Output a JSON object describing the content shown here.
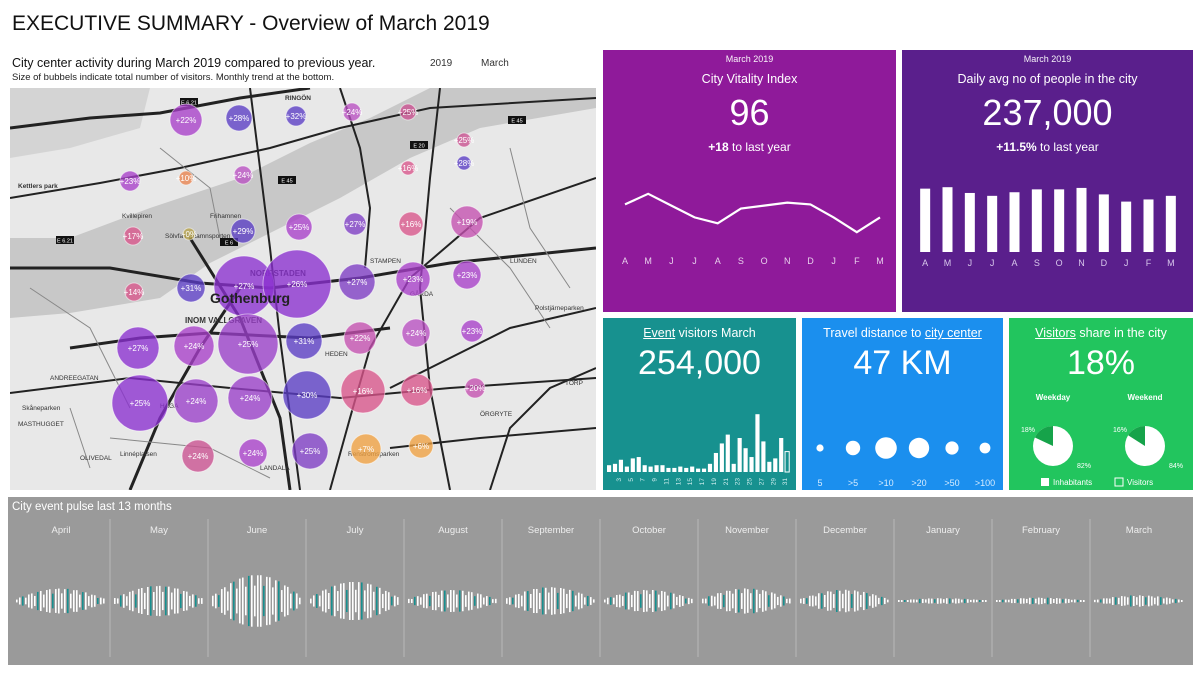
{
  "title": "EXECUTIVE SUMMARY - Overview of March 2019",
  "map": {
    "subtitle": "City center activity during March 2019 compared to previous year.",
    "note": "Size of bubbels indicate total number of visitors. Monthly trend at the bottom.",
    "filter_year": "2019",
    "filter_month": "March",
    "city_label": "Gothenburg",
    "place_labels": [
      "RINGÖN",
      "Kettlers park",
      "Frihamnen",
      "Sölvfa Frihamnsporten",
      "NORRSTADEN",
      "STAMPEN",
      "GÅRDA",
      "LUNDEN",
      "INOM VALLGRAVEN",
      "HEDEN",
      "Polstjärneparken",
      "MASTHUGGET",
      "HAGA",
      "OLIVEDAL",
      "LANDALA",
      "ÖRGRYTE",
      "TORP",
      "ANDREEGATAN",
      "Kvillepiren",
      "Skåneparken",
      "Renströmsparken",
      "Linnéplatsen"
    ],
    "road_labels": [
      "E 6.21",
      "E 45",
      "E 6",
      "E 20",
      "E 45",
      "E 6.21"
    ],
    "bubbles": [
      {
        "label": "+22%",
        "r": 16,
        "color": "#a83fc9"
      },
      {
        "label": "+28%",
        "r": 13,
        "color": "#5a3cc4"
      },
      {
        "label": "+32%",
        "r": 10,
        "color": "#5a3cc4"
      },
      {
        "label": "+24%",
        "r": 9,
        "color": "#b84fc2"
      },
      {
        "label": "+25%",
        "r": 8,
        "color": "#c94f8f"
      },
      {
        "label": "+23%",
        "r": 10,
        "color": "#a83fc9"
      },
      {
        "label": "+10%",
        "r": 7,
        "color": "#e8824d"
      },
      {
        "label": "+24%",
        "r": 9,
        "color": "#b84fc2"
      },
      {
        "label": "+16%",
        "r": 7,
        "color": "#d9558a"
      },
      {
        "label": "+28%",
        "r": 7,
        "color": "#5a3cc4"
      },
      {
        "label": "+25%",
        "r": 7,
        "color": "#c94f8f"
      },
      {
        "label": "+17%",
        "r": 9,
        "color": "#d9558a"
      },
      {
        "label": "+0%",
        "r": 6,
        "color": "#b7a34a"
      },
      {
        "label": "+29%",
        "r": 12,
        "color": "#5a3cc4"
      },
      {
        "label": "+25%",
        "r": 13,
        "color": "#a83fc9"
      },
      {
        "label": "+27%",
        "r": 11,
        "color": "#7d3cc4"
      },
      {
        "label": "+16%",
        "r": 12,
        "color": "#d9558a"
      },
      {
        "label": "+19%",
        "r": 16,
        "color": "#c44fb0"
      },
      {
        "label": "+14%",
        "r": 9,
        "color": "#d9558a"
      },
      {
        "label": "+31%",
        "r": 14,
        "color": "#5a3cc4"
      },
      {
        "label": "+27%",
        "r": 30,
        "color": "#8a2fd0"
      },
      {
        "label": "+26%",
        "r": 34,
        "color": "#8a2fd0"
      },
      {
        "label": "+27%",
        "r": 18,
        "color": "#7d3cc4"
      },
      {
        "label": "+23%",
        "r": 17,
        "color": "#a83fc9"
      },
      {
        "label": "+23%",
        "r": 14,
        "color": "#a83fc9"
      },
      {
        "label": "+27%",
        "r": 21,
        "color": "#8a2fd0"
      },
      {
        "label": "+24%",
        "r": 20,
        "color": "#a83fc9"
      },
      {
        "label": "+25%",
        "r": 30,
        "color": "#9a3fc9"
      },
      {
        "label": "+31%",
        "r": 18,
        "color": "#5a3cc4"
      },
      {
        "label": "+22%",
        "r": 16,
        "color": "#c44fb0"
      },
      {
        "label": "+24%",
        "r": 14,
        "color": "#b84fc2"
      },
      {
        "label": "+23%",
        "r": 11,
        "color": "#a83fc9"
      },
      {
        "label": "+25%",
        "r": 28,
        "color": "#8a2fd0"
      },
      {
        "label": "+24%",
        "r": 22,
        "color": "#9a3fc9"
      },
      {
        "label": "+24%",
        "r": 22,
        "color": "#9a3fc9"
      },
      {
        "label": "+30%",
        "r": 24,
        "color": "#5a3cc4"
      },
      {
        "label": "+16%",
        "r": 22,
        "color": "#d9558a"
      },
      {
        "label": "+16%",
        "r": 16,
        "color": "#d9558a"
      },
      {
        "label": "+20%",
        "r": 10,
        "color": "#c44fb0"
      },
      {
        "label": "+24%",
        "r": 16,
        "color": "#c94f8f"
      },
      {
        "label": "+24%",
        "r": 14,
        "color": "#a83fc9"
      },
      {
        "label": "+25%",
        "r": 18,
        "color": "#7d3cc4"
      },
      {
        "label": "+7%",
        "r": 15,
        "color": "#f0a040"
      },
      {
        "label": "+6%",
        "r": 12,
        "color": "#f0a040"
      }
    ]
  },
  "vitality": {
    "period": "March 2019",
    "title": "City Vitality Index",
    "value": "96",
    "delta": "+18",
    "delta_suffix": " to last year",
    "color": "#8f1a9a"
  },
  "people": {
    "period": "March 2019",
    "title": "Daily avg no of people in the city",
    "value": "237,000",
    "delta": "+11.5%",
    "delta_suffix": " to last year",
    "color": "#5a1f8c"
  },
  "events": {
    "title_link": "Event",
    "title_rest": " visitors March",
    "value": "254,000",
    "color": "#17918f"
  },
  "travel": {
    "title_prefix": "Travel distance to ",
    "title_link": "city center",
    "value": "47 KM",
    "color": "#1b8fee"
  },
  "visitors": {
    "title_link": "Visitors",
    "title_rest": " share in the  city",
    "value": "18%",
    "pie_weekday_label": "Weekday",
    "pie_weekend_label": "Weekend",
    "legend_inhabitants": "Inhabitants",
    "legend_visitors": "Visitors",
    "color": "#22c55e"
  },
  "pulse": {
    "title": "City event pulse last 13 months"
  },
  "chart_data": [
    {
      "type": "line",
      "categories": [
        "A",
        "M",
        "J",
        "J",
        "A",
        "S",
        "O",
        "N",
        "D",
        "J",
        "F",
        "M"
      ],
      "values": [
        0.62,
        0.8,
        0.6,
        0.4,
        0.3,
        0.55,
        0.6,
        0.65,
        0.62,
        0.4,
        0.15,
        0.4
      ],
      "title": "City Vitality Index"
    },
    {
      "type": "bar",
      "categories": [
        "A",
        "M",
        "J",
        "J",
        "A",
        "S",
        "O",
        "N",
        "D",
        "J",
        "F",
        "M"
      ],
      "values": [
        0.88,
        0.9,
        0.82,
        0.78,
        0.83,
        0.87,
        0.87,
        0.89,
        0.8,
        0.7,
        0.73,
        0.78
      ],
      "title": "Daily avg no of people in the city"
    },
    {
      "type": "bar",
      "categories": [
        "1",
        "2",
        "3",
        "4",
        "5",
        "6",
        "7",
        "8",
        "9",
        "10",
        "11",
        "12",
        "13",
        "14",
        "15",
        "16",
        "17",
        "18",
        "19",
        "20",
        "21",
        "22",
        "23",
        "24",
        "25",
        "26",
        "27",
        "28",
        "29",
        "30",
        "31"
      ],
      "tick_labels": [
        "3",
        "5",
        "7",
        "9",
        "11",
        "13",
        "15",
        "17",
        "19",
        "21",
        "23",
        "25",
        "27",
        "29",
        "31"
      ],
      "values": [
        0.1,
        0.12,
        0.18,
        0.08,
        0.2,
        0.22,
        0.1,
        0.08,
        0.1,
        0.1,
        0.06,
        0.06,
        0.08,
        0.06,
        0.08,
        0.05,
        0.05,
        0.12,
        0.28,
        0.42,
        0.55,
        0.12,
        0.5,
        0.35,
        0.22,
        0.85,
        0.45,
        0.15,
        0.2,
        0.5,
        0.3
      ],
      "title": "Event visitors March"
    },
    {
      "type": "scatter",
      "categories": [
        "5",
        ">5",
        ">10",
        ">20",
        ">50",
        ">100"
      ],
      "values": [
        0.3,
        0.6,
        0.9,
        0.85,
        0.55,
        0.45
      ],
      "title": "Travel distance to city center"
    },
    {
      "type": "pie",
      "categories": [
        "Weekday",
        "Weekend"
      ],
      "series": [
        {
          "name": "Weekday",
          "values": [
            82,
            18
          ],
          "labels": [
            "82%",
            "18%"
          ]
        },
        {
          "name": "Weekend",
          "values": [
            84,
            16
          ],
          "labels": [
            "84%",
            "16%"
          ]
        }
      ],
      "legend": [
        "Inhabitants",
        "Visitors"
      ],
      "title": "Visitors share in the  city"
    },
    {
      "type": "bar",
      "title": "City event pulse last 13 months",
      "categories": [
        "April",
        "May",
        "June",
        "July",
        "August",
        "September",
        "October",
        "November",
        "December",
        "January",
        "February",
        "March"
      ],
      "amplitudes": [
        0.45,
        0.55,
        0.95,
        0.7,
        0.4,
        0.5,
        0.4,
        0.45,
        0.4,
        0.1,
        0.12,
        0.2
      ]
    }
  ]
}
